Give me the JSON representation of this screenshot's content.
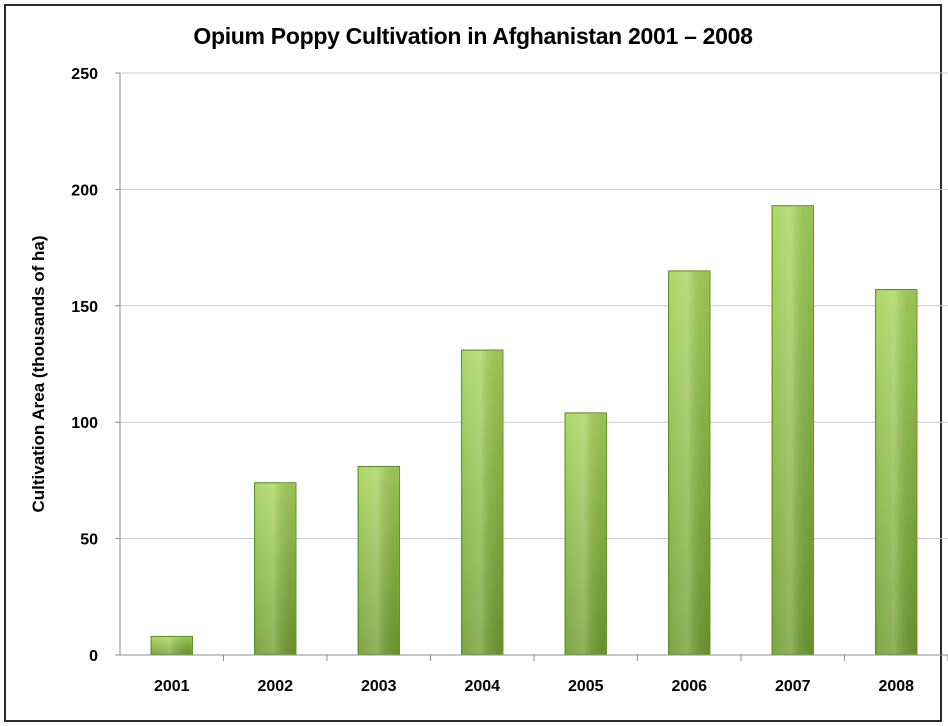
{
  "chart_data": {
    "type": "bar",
    "title": "Opium Poppy Cultivation in Afghanistan 2001 – 2008",
    "xlabel": "",
    "ylabel": "Cultivation Area (thousands of ha)",
    "categories": [
      "2001",
      "2002",
      "2003",
      "2004",
      "2005",
      "2006",
      "2007",
      "2008"
    ],
    "values": [
      8,
      74,
      81,
      131,
      104,
      165,
      193,
      157
    ],
    "ylim": [
      0,
      250
    ],
    "yticks": [
      0,
      50,
      100,
      150,
      200,
      250
    ],
    "grid": true,
    "legend": "none",
    "colors": {
      "bar_top": "#a6d45a",
      "bar_bottom": "#6f9c2e",
      "bar_edge": "#5e8a24",
      "grid": "#c8c8c8",
      "axis": "#8c8c8c"
    }
  }
}
